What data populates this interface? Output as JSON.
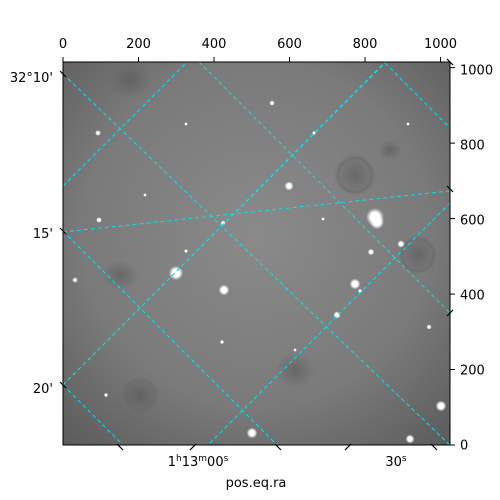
{
  "figure": {
    "x_axis_label": "pos.eq.ra",
    "colors": {
      "background": "#ffffff",
      "image_base": "#777777",
      "grid": "#00e5ee",
      "axes": "#000000"
    }
  },
  "pixel_axes": {
    "top_ticks": [
      "0",
      "200",
      "400",
      "600",
      "800",
      "1000"
    ],
    "right_ticks": [
      "0",
      "200",
      "400",
      "600",
      "800",
      "1000"
    ]
  },
  "world_axes": {
    "dec_ticks": [
      {
        "label": "32°10'"
      },
      {
        "label": "15'"
      },
      {
        "label": "20'"
      }
    ],
    "ra_ticks": [
      {
        "label": "1h13m00s"
      },
      {
        "label": "30s"
      }
    ]
  }
}
